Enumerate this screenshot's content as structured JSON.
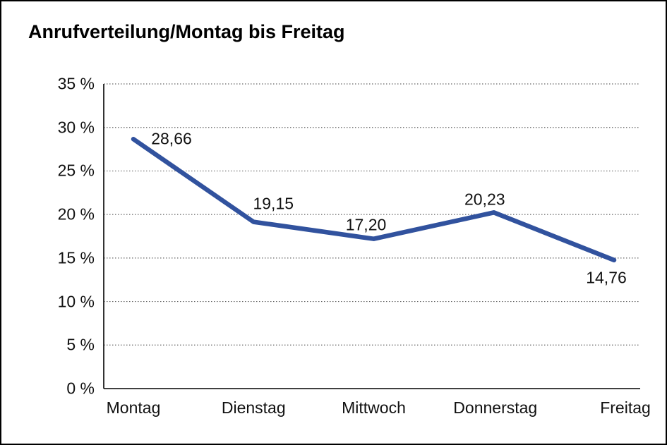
{
  "chart_data": {
    "type": "line",
    "title": "Anrufverteilung/Montag bis Freitag",
    "categories": [
      "Montag",
      "Dienstag",
      "Mittwoch",
      "Donnerstag",
      "Freitag"
    ],
    "values": [
      28.66,
      19.15,
      17.2,
      20.23,
      14.76
    ],
    "point_labels": [
      "28,66",
      "19,15",
      "17,20",
      "20,23",
      "14,76"
    ],
    "series_name": "Anrufverteilung",
    "xlabel": "",
    "ylabel": "",
    "ylim": [
      0,
      35
    ],
    "y_tick_values": [
      35,
      30,
      25,
      20,
      15,
      10,
      5,
      0
    ],
    "y_tick_labels": [
      "35 %",
      "30 %",
      "25 %",
      "20 %",
      "15 %",
      "10 %",
      "5 %",
      "0 %"
    ],
    "grid": "horizontal-dotted",
    "legend_position": "none",
    "line_color": "#31529E",
    "axis_color": "#000000",
    "grid_color": "#666666",
    "label_color": "#111111",
    "background_color": "#ffffff"
  }
}
